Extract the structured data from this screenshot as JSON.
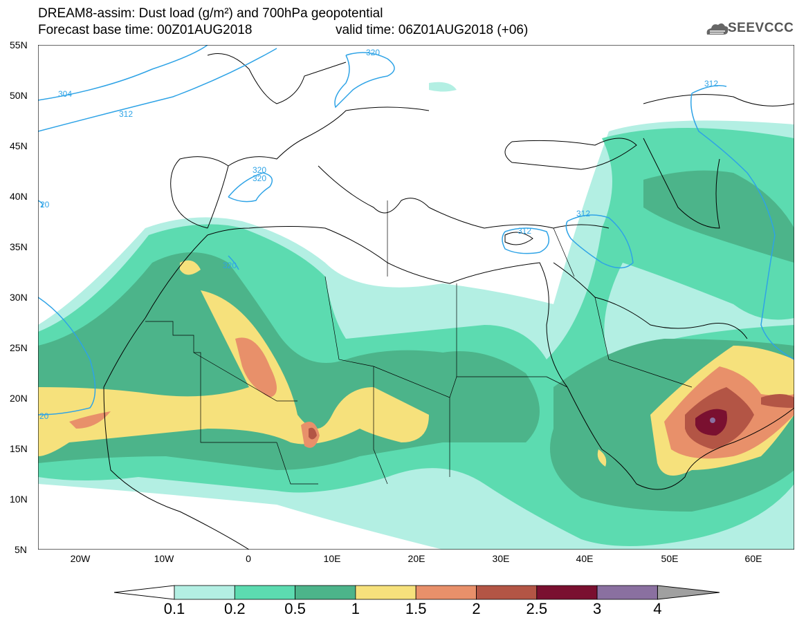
{
  "title": {
    "line1": "DREAM8-assim: Dust load (g/m²) and 700hPa geopotential",
    "line2a": "Forecast base time: 00Z01AUG2018",
    "line2b": "valid time: 06Z01AUG2018 (+06)"
  },
  "logo": {
    "text": "SEEVCCC",
    "icon": "cloud-logo-icon"
  },
  "axes": {
    "lat_labels": [
      "55N",
      "50N",
      "45N",
      "40N",
      "35N",
      "30N",
      "25N",
      "20N",
      "15N",
      "10N",
      "5N"
    ],
    "lon_labels": [
      "20W",
      "10W",
      "0",
      "10E",
      "20E",
      "30E",
      "40E",
      "50E",
      "60E"
    ]
  },
  "contour_labels": [
    "304",
    "312",
    "320",
    "320",
    "320",
    "312",
    "312",
    "312",
    "320",
    "20",
    "20"
  ],
  "colorbar": {
    "labels": [
      "0.1",
      "0.2",
      "0.5",
      "1",
      "1.5",
      "2",
      "2.5",
      "3",
      "4"
    ],
    "colors": [
      "#b3efe3",
      "#5cdbb0",
      "#4cb48a",
      "#f6e17c",
      "#e8906a",
      "#b35545",
      "#7a1030",
      "#8a70a0"
    ],
    "under_color": "#ffffff",
    "over_color": "#a0a0a0"
  }
}
